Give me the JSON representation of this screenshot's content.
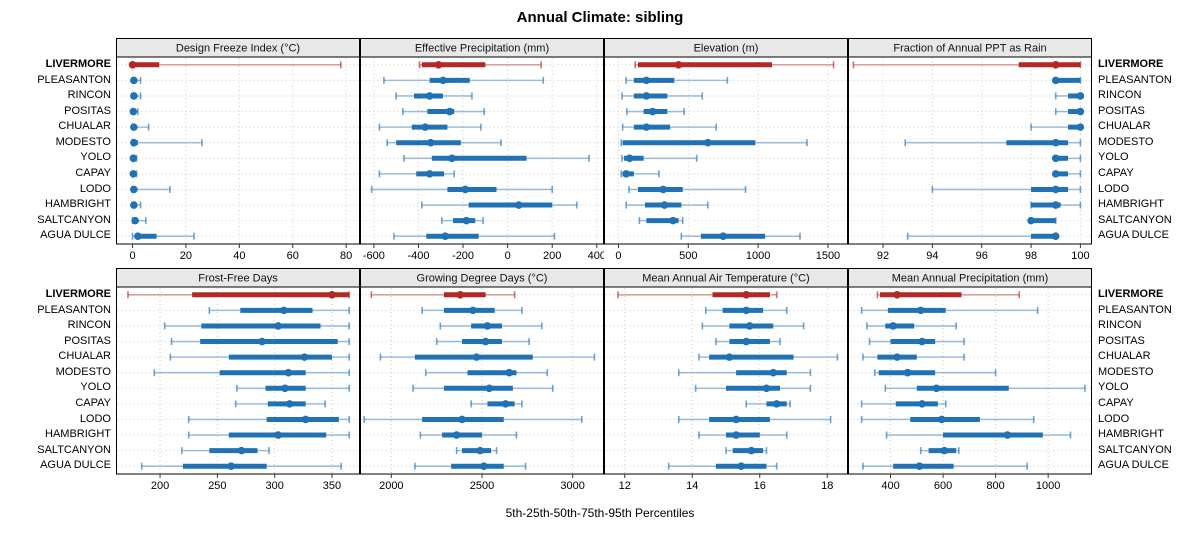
{
  "title": "Annual Climate: sibling",
  "caption": "5th-25th-50th-75th-95th Percentiles",
  "highlight_location": "LIVERMORE",
  "colors": {
    "highlight": "#B22824",
    "normal": "#2171B5",
    "grid": "#C9C9C9",
    "header_bg": "#E8E8E8",
    "border": "#000000",
    "tick": "#333333"
  },
  "chart_data": {
    "type": "dot-interval",
    "percentiles": [
      5,
      25,
      50,
      75,
      95
    ],
    "legend_note": "red = highlighted site, blue = comparison sites; thin line 5th-95th, thick bar 25th-75th, dot 50th",
    "locations": [
      "LIVERMORE",
      "PLEASANTON",
      "RINCON",
      "POSITAS",
      "CHUALAR",
      "MODESTO",
      "YOLO",
      "CAPAY",
      "LODO",
      "HAMBRIGHT",
      "SALTCANYON",
      "AGUA DULCE"
    ],
    "panels": [
      {
        "title": "Design Freeze Index (°C)",
        "xlim": [
          -6,
          85
        ],
        "ticks": [
          0,
          20,
          40,
          60,
          80
        ],
        "series": [
          [
            0,
            0,
            0,
            10,
            78
          ],
          [
            0,
            0,
            0.5,
            1,
            3
          ],
          [
            0,
            0,
            0.5,
            1,
            3
          ],
          [
            0,
            0,
            0.3,
            0.8,
            2
          ],
          [
            0,
            0,
            0.5,
            1,
            6
          ],
          [
            0,
            0,
            0.5,
            2,
            26
          ],
          [
            0,
            0,
            0.3,
            0.8,
            1.5
          ],
          [
            0,
            0,
            0.3,
            0.8,
            1.5
          ],
          [
            0,
            0,
            0.5,
            1,
            14
          ],
          [
            0,
            0,
            0.5,
            1.5,
            3
          ],
          [
            0,
            0.3,
            1,
            2,
            5
          ],
          [
            0,
            1,
            2,
            9,
            23
          ]
        ]
      },
      {
        "title": "Effective Precipitation (mm)",
        "xlim": [
          -660,
          430
        ],
        "ticks": [
          -600,
          -400,
          -200,
          0,
          200,
          400
        ],
        "series": [
          [
            -395,
            -385,
            -310,
            -100,
            150
          ],
          [
            -555,
            -350,
            -290,
            -170,
            160
          ],
          [
            -500,
            -420,
            -350,
            -290,
            -160
          ],
          [
            -470,
            -360,
            -260,
            -240,
            -105
          ],
          [
            -575,
            -430,
            -370,
            -270,
            -120
          ],
          [
            -540,
            -500,
            -345,
            -210,
            -30
          ],
          [
            -465,
            -340,
            -250,
            85,
            365
          ],
          [
            -575,
            -410,
            -350,
            -285,
            -240
          ],
          [
            -610,
            -270,
            -190,
            -50,
            200
          ],
          [
            -385,
            -175,
            50,
            200,
            310
          ],
          [
            -295,
            -245,
            -185,
            -145,
            -110
          ],
          [
            -510,
            -365,
            -280,
            -130,
            210
          ]
        ]
      },
      {
        "title": "Elevation (m)",
        "xlim": [
          -100,
          1640
        ],
        "ticks": [
          0,
          500,
          1000,
          1500
        ],
        "series": [
          [
            120,
            140,
            430,
            1100,
            1540
          ],
          [
            55,
            110,
            200,
            400,
            780
          ],
          [
            25,
            110,
            200,
            350,
            600
          ],
          [
            60,
            180,
            245,
            350,
            470
          ],
          [
            30,
            110,
            200,
            370,
            700
          ],
          [
            20,
            30,
            640,
            980,
            1350
          ],
          [
            25,
            40,
            80,
            180,
            560
          ],
          [
            20,
            30,
            55,
            110,
            290
          ],
          [
            75,
            140,
            320,
            460,
            910
          ],
          [
            55,
            190,
            330,
            450,
            640
          ],
          [
            150,
            200,
            390,
            430,
            460
          ],
          [
            450,
            590,
            750,
            1050,
            1300
          ]
        ]
      },
      {
        "title": "Fraction of Annual PPT as Rain",
        "xlim": [
          90.6,
          100.45
        ],
        "ticks": [
          92,
          94,
          96,
          98,
          100
        ],
        "series": [
          [
            90.8,
            97.5,
            99,
            100,
            100
          ],
          [
            99,
            99,
            99,
            100,
            100
          ],
          [
            99,
            99.5,
            100,
            100,
            100
          ],
          [
            99,
            99.5,
            100,
            100,
            100
          ],
          [
            98,
            99.5,
            100,
            100,
            100
          ],
          [
            92.9,
            97,
            99,
            99.5,
            100
          ],
          [
            99,
            99,
            99,
            99.5,
            100
          ],
          [
            99,
            99,
            99,
            99.5,
            100
          ],
          [
            94,
            98,
            99,
            99.5,
            100
          ],
          [
            98,
            98,
            99,
            99.2,
            100
          ],
          [
            98,
            98,
            98,
            99,
            99
          ],
          [
            93,
            98,
            99,
            99,
            99
          ]
        ]
      },
      {
        "title": "Frost-Free Days",
        "xlim": [
          162,
          374
        ],
        "ticks": [
          200,
          250,
          300,
          350
        ],
        "series": [
          [
            172,
            228,
            350,
            365,
            365
          ],
          [
            243,
            270,
            308,
            333,
            365
          ],
          [
            204,
            236,
            303,
            340,
            365
          ],
          [
            210,
            235,
            289,
            355,
            365
          ],
          [
            209,
            260,
            326,
            350,
            365
          ],
          [
            195,
            252,
            312,
            327,
            365
          ],
          [
            267,
            292,
            309,
            327,
            365
          ],
          [
            266,
            294,
            313,
            327,
            344
          ],
          [
            225,
            293,
            327,
            356,
            365
          ],
          [
            225,
            260,
            303,
            345,
            365
          ],
          [
            219,
            243,
            271,
            285,
            295
          ],
          [
            184,
            220,
            262,
            293,
            358
          ]
        ]
      },
      {
        "title": "Growing Degree Days (°C)",
        "xlim": [
          1830,
          3170
        ],
        "ticks": [
          2000,
          2500,
          3000
        ],
        "series": [
          [
            1890,
            2290,
            2380,
            2520,
            2680
          ],
          [
            2170,
            2290,
            2450,
            2570,
            2720
          ],
          [
            2270,
            2440,
            2530,
            2610,
            2830
          ],
          [
            2250,
            2390,
            2520,
            2610,
            2760
          ],
          [
            1940,
            2130,
            2470,
            2780,
            3120
          ],
          [
            2190,
            2420,
            2650,
            2690,
            2860
          ],
          [
            2120,
            2290,
            2540,
            2670,
            2890
          ],
          [
            2440,
            2530,
            2630,
            2680,
            2720
          ],
          [
            1850,
            2170,
            2390,
            2620,
            3050
          ],
          [
            2160,
            2280,
            2360,
            2500,
            2690
          ],
          [
            2360,
            2390,
            2490,
            2550,
            2580
          ],
          [
            2130,
            2330,
            2510,
            2620,
            2740
          ]
        ]
      },
      {
        "title": "Mean Annual Air Temperature (°C)",
        "xlim": [
          11.4,
          18.6
        ],
        "ticks": [
          12,
          14,
          16,
          18
        ],
        "series": [
          [
            11.8,
            14.6,
            15.6,
            16.3,
            16.5
          ],
          [
            14.4,
            14.9,
            15.6,
            16.1,
            16.8
          ],
          [
            14.3,
            15.1,
            15.7,
            16.4,
            17.3
          ],
          [
            14.7,
            15.1,
            15.6,
            16.3,
            16.6
          ],
          [
            14.2,
            14.5,
            15.1,
            17.0,
            18.3
          ],
          [
            13.6,
            15.3,
            16.4,
            16.8,
            17.5
          ],
          [
            14.1,
            15.0,
            16.2,
            16.6,
            17.5
          ],
          [
            15.6,
            16.2,
            16.5,
            16.8,
            16.9
          ],
          [
            13.6,
            14.5,
            15.3,
            16.3,
            18.1
          ],
          [
            14.2,
            15.0,
            15.3,
            16.0,
            16.8
          ],
          [
            15.0,
            15.2,
            15.75,
            16.1,
            16.2
          ],
          [
            13.3,
            14.7,
            15.45,
            16.2,
            16.5
          ]
        ]
      },
      {
        "title": "Mean Annual Precipitation (mm)",
        "xlim": [
          240,
          1165
        ],
        "ticks": [
          400,
          600,
          800,
          1000
        ],
        "series": [
          [
            350,
            360,
            425,
            670,
            890
          ],
          [
            290,
            390,
            515,
            610,
            960
          ],
          [
            310,
            380,
            410,
            490,
            650
          ],
          [
            320,
            400,
            520,
            570,
            680
          ],
          [
            295,
            350,
            425,
            500,
            680
          ],
          [
            340,
            355,
            465,
            570,
            800
          ],
          [
            380,
            500,
            575,
            850,
            1140
          ],
          [
            290,
            420,
            520,
            580,
            610
          ],
          [
            290,
            475,
            595,
            740,
            945
          ],
          [
            385,
            600,
            845,
            980,
            1085
          ],
          [
            515,
            545,
            605,
            650,
            660
          ],
          [
            295,
            410,
            510,
            640,
            920
          ]
        ]
      }
    ]
  }
}
